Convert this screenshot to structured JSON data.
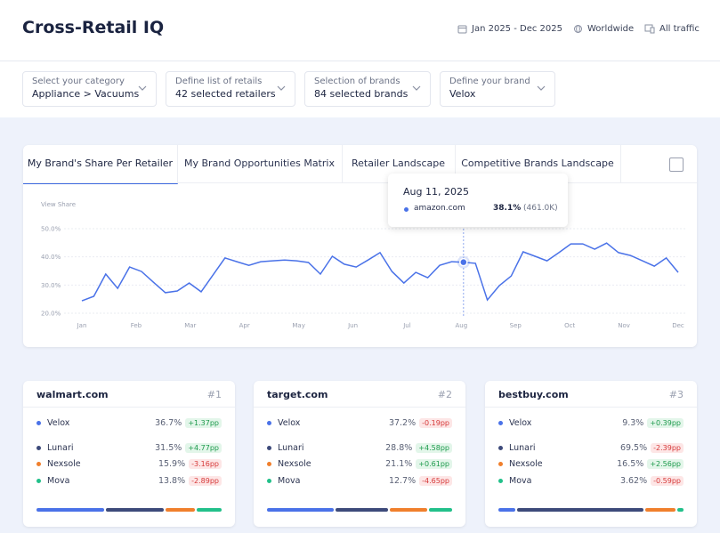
{
  "header": {
    "title": "Cross-Retail IQ",
    "date_range": "Jan 2025 - Dec 2025",
    "region": "Worldwide",
    "traffic": "All traffic"
  },
  "filters": [
    {
      "label": "Select your category",
      "value": "Appliance > Vacuums"
    },
    {
      "label": "Define list of retails",
      "value": "42 selected retailers"
    },
    {
      "label": "Selection of brands",
      "value": "84 selected brands"
    },
    {
      "label": "Define your brand",
      "value": "Velox"
    }
  ],
  "tabs": [
    "My Brand's Share Per Retailer",
    "My Brand Opportunities Matrix",
    "Retailer Landscape",
    "Competitive Brands Landscape"
  ],
  "chart_data": {
    "type": "line",
    "ylabel": "View Share",
    "color": "#4a72e8",
    "grid": true,
    "ylim": [
      20,
      50
    ],
    "yticks": [
      {
        "value": 20,
        "label": "20.0%"
      },
      {
        "value": 30,
        "label": "30.0%"
      },
      {
        "value": 40,
        "label": "40.0%"
      },
      {
        "value": 50,
        "label": "50.0%"
      }
    ],
    "xticks": [
      "Jan",
      "Feb",
      "Mar",
      "Apr",
      "May",
      "Jun",
      "Jul",
      "Aug",
      "Sep",
      "Oct",
      "Nov",
      "Dec"
    ],
    "values": [
      24.4,
      26.0,
      33.9,
      28.8,
      36.4,
      34.8,
      31.0,
      27.3,
      27.9,
      30.7,
      27.6,
      33.6,
      39.6,
      38.3,
      37.0,
      38.3,
      38.6,
      38.9,
      38.6,
      38.0,
      33.9,
      40.2,
      37.4,
      36.4,
      38.9,
      41.5,
      34.8,
      30.7,
      34.5,
      32.6,
      37.0,
      38.3,
      38.1,
      37.7,
      24.7,
      29.8,
      33.2,
      41.8,
      40.2,
      38.6,
      41.5,
      44.6,
      44.6,
      42.7,
      44.9,
      41.5,
      40.5,
      38.6,
      36.7,
      39.6,
      34.5
    ],
    "tooltip": {
      "date": "Aug 11, 2025",
      "site": "amazon.com",
      "value": "38.1%",
      "count": "(461.0K)"
    }
  },
  "cards": [
    {
      "site": "walmart.com",
      "rank": "#1",
      "rows": [
        {
          "name": "Velox",
          "color": "#4a72e8",
          "share": "36.7%",
          "change": "+1.37pp"
        },
        {
          "name": "Lunari",
          "color": "#3d4a7a",
          "share": "31.5%",
          "change": "+4.77pp"
        },
        {
          "name": "Nexsole",
          "color": "#f07f2c",
          "share": "15.9%",
          "change": "-3.16pp"
        },
        {
          "name": "Mova",
          "color": "#22c08a",
          "share": "13.8%",
          "change": "-2.89pp"
        }
      ]
    },
    {
      "site": "target.com",
      "rank": "#2",
      "rows": [
        {
          "name": "Velox",
          "color": "#4a72e8",
          "share": "37.2%",
          "change": "-0.19pp"
        },
        {
          "name": "Lunari",
          "color": "#3d4a7a",
          "share": "28.8%",
          "change": "+4.58pp"
        },
        {
          "name": "Nexsole",
          "color": "#f07f2c",
          "share": "21.1%",
          "change": "+0.61pp"
        },
        {
          "name": "Mova",
          "color": "#22c08a",
          "share": "12.7%",
          "change": "-4.65pp"
        }
      ]
    },
    {
      "site": "bestbuy.com",
      "rank": "#3",
      "rows": [
        {
          "name": "Velox",
          "color": "#4a72e8",
          "share": "9.3%",
          "change": "+0.39pp"
        },
        {
          "name": "Lunari",
          "color": "#3d4a7a",
          "share": "69.5%",
          "change": "-2.39pp"
        },
        {
          "name": "Nexsole",
          "color": "#f07f2c",
          "share": "16.5%",
          "change": "+2.56pp"
        },
        {
          "name": "Mova",
          "color": "#22c08a",
          "share": "3.62%",
          "change": "-0.59pp"
        }
      ]
    }
  ]
}
